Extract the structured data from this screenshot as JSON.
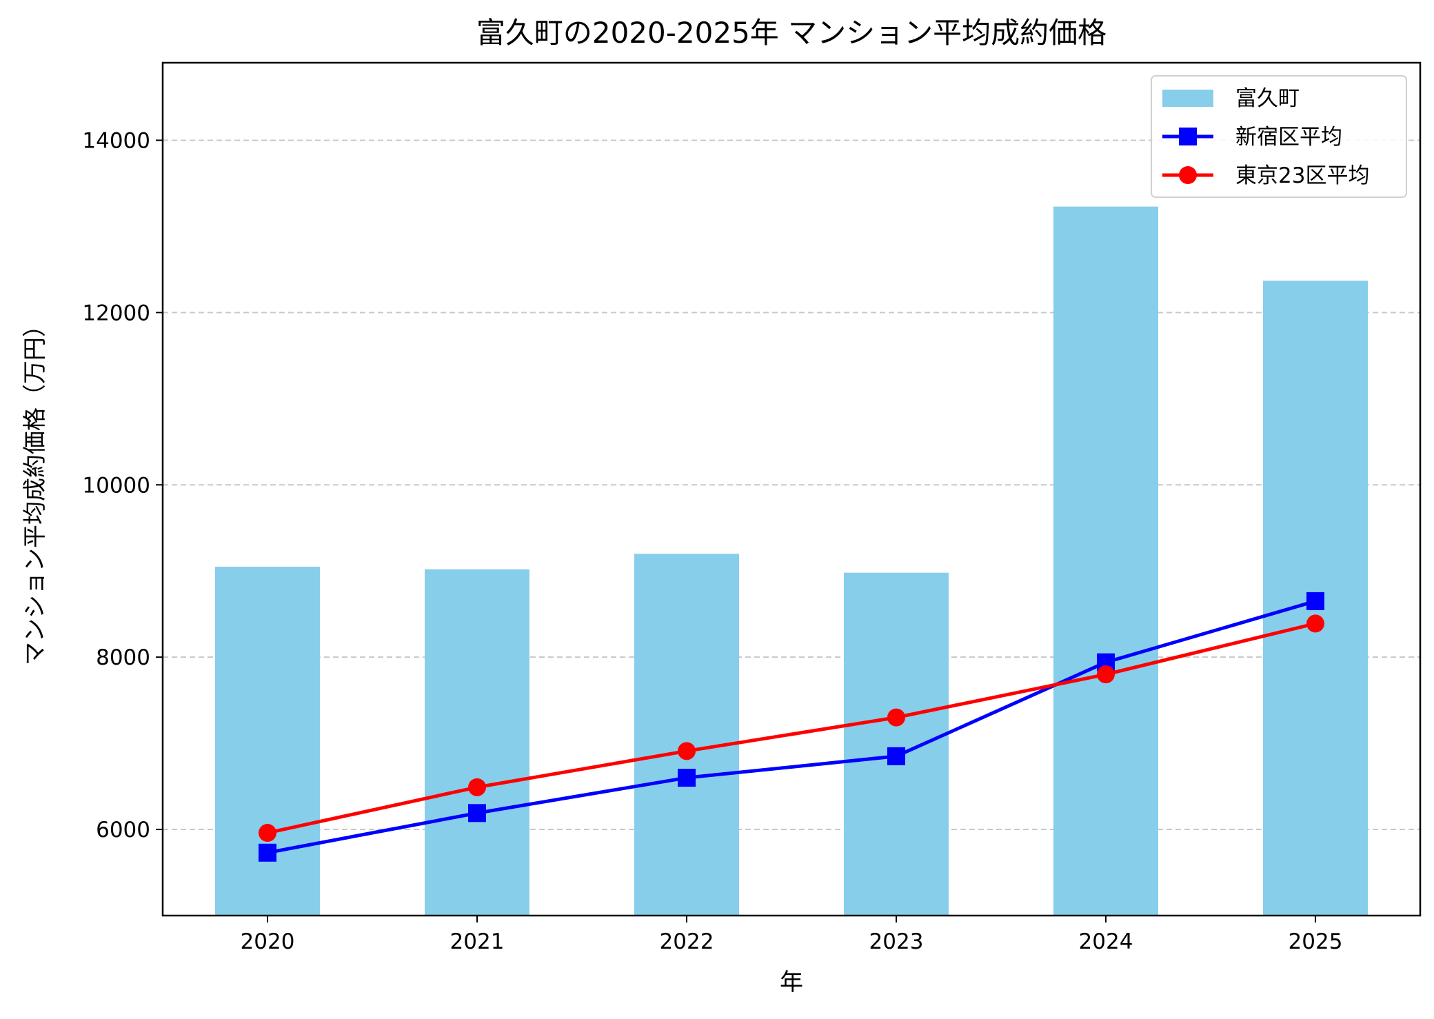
{
  "chart_data": {
    "type": "bar+line",
    "title": "富久町の2020-2025年 マンション平均成約価格",
    "xlabel": "年",
    "ylabel": "マンション平均成約価格（万円）",
    "categories": [
      "2020",
      "2021",
      "2022",
      "2023",
      "2024",
      "2025"
    ],
    "ylim": [
      5000,
      14900
    ],
    "yticks": [
      6000,
      8000,
      10000,
      12000,
      14000
    ],
    "grid": "y, dashed",
    "legend_placement": "top-right",
    "series": [
      {
        "name": "富久町",
        "kind": "bar",
        "color": "#87CEEB",
        "values": [
          9050,
          9020,
          9200,
          8980,
          13230,
          12370
        ]
      },
      {
        "name": "新宿区平均",
        "kind": "line",
        "marker": "square",
        "color": "#0000FF",
        "values": [
          5730,
          6190,
          6600,
          6850,
          7940,
          8650
        ]
      },
      {
        "name": "東京23区平均",
        "kind": "line",
        "marker": "circle",
        "color": "#FF0000",
        "values": [
          5960,
          6490,
          6910,
          7300,
          7800,
          8390
        ]
      }
    ]
  }
}
